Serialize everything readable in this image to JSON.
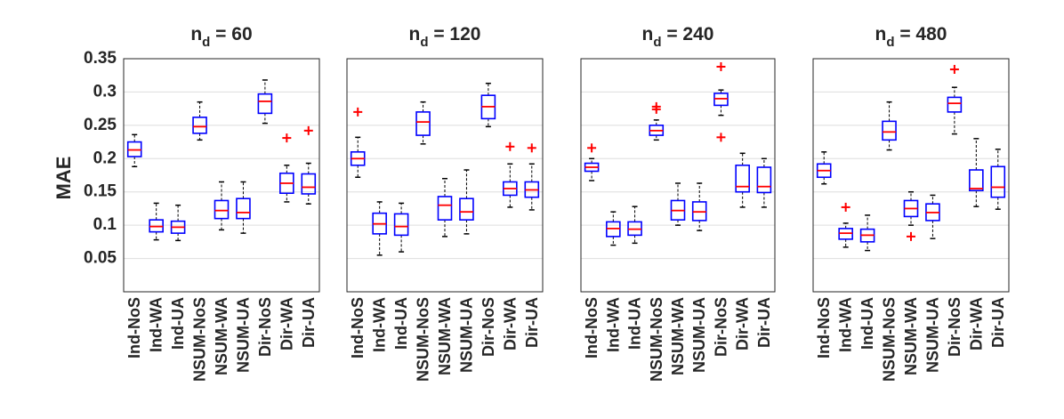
{
  "chart_data": [
    {
      "type": "box",
      "title": "n",
      "title_sub": "d",
      "title_value": " = 60",
      "ylabel": "MAE",
      "ylim": [
        0,
        0.35
      ],
      "yticks": [
        "0.05",
        "0.1",
        "0.15",
        "0.2",
        "0.25",
        "0.3",
        "0.35"
      ],
      "grid": "horizontal",
      "categories": [
        "Ind-NoS",
        "Ind-WA",
        "Ind-UA",
        "NSUM-NoS",
        "NSUM-WA",
        "NSUM-UA",
        "Dir-NoS",
        "Dir-WA",
        "Dir-UA"
      ],
      "boxes": [
        {
          "min": 0.188,
          "q1": 0.203,
          "median": 0.213,
          "q3": 0.225,
          "max": 0.236,
          "outliers": []
        },
        {
          "min": 0.078,
          "q1": 0.09,
          "median": 0.098,
          "q3": 0.108,
          "max": 0.133,
          "outliers": []
        },
        {
          "min": 0.077,
          "q1": 0.088,
          "median": 0.097,
          "q3": 0.106,
          "max": 0.13,
          "outliers": []
        },
        {
          "min": 0.228,
          "q1": 0.238,
          "median": 0.248,
          "q3": 0.262,
          "max": 0.285,
          "outliers": []
        },
        {
          "min": 0.093,
          "q1": 0.11,
          "median": 0.122,
          "q3": 0.137,
          "max": 0.165,
          "outliers": []
        },
        {
          "min": 0.088,
          "q1": 0.11,
          "median": 0.119,
          "q3": 0.14,
          "max": 0.165,
          "outliers": []
        },
        {
          "min": 0.253,
          "q1": 0.268,
          "median": 0.286,
          "q3": 0.297,
          "max": 0.318,
          "outliers": []
        },
        {
          "min": 0.135,
          "q1": 0.148,
          "median": 0.163,
          "q3": 0.178,
          "max": 0.19,
          "outliers": [
            0.231
          ]
        },
        {
          "min": 0.132,
          "q1": 0.147,
          "median": 0.157,
          "q3": 0.177,
          "max": 0.193,
          "outliers": [
            0.242
          ]
        }
      ]
    },
    {
      "type": "box",
      "title": "n",
      "title_sub": "d",
      "title_value": " = 120",
      "ylim": [
        0,
        0.35
      ],
      "grid": "horizontal",
      "categories": [
        "Ind-NoS",
        "Ind-WA",
        "Ind-UA",
        "NSUM-NoS",
        "NSUM-WA",
        "NSUM-UA",
        "Dir-NoS",
        "Dir-WA",
        "Dir-UA"
      ],
      "boxes": [
        {
          "min": 0.172,
          "q1": 0.19,
          "median": 0.2,
          "q3": 0.21,
          "max": 0.232,
          "outliers": [
            0.27
          ]
        },
        {
          "min": 0.055,
          "q1": 0.087,
          "median": 0.102,
          "q3": 0.118,
          "max": 0.135,
          "outliers": []
        },
        {
          "min": 0.06,
          "q1": 0.085,
          "median": 0.098,
          "q3": 0.117,
          "max": 0.133,
          "outliers": []
        },
        {
          "min": 0.222,
          "q1": 0.235,
          "median": 0.255,
          "q3": 0.27,
          "max": 0.285,
          "outliers": []
        },
        {
          "min": 0.083,
          "q1": 0.108,
          "median": 0.13,
          "q3": 0.143,
          "max": 0.17,
          "outliers": []
        },
        {
          "min": 0.087,
          "q1": 0.108,
          "median": 0.12,
          "q3": 0.14,
          "max": 0.183,
          "outliers": []
        },
        {
          "min": 0.248,
          "q1": 0.26,
          "median": 0.278,
          "q3": 0.295,
          "max": 0.313,
          "outliers": []
        },
        {
          "min": 0.127,
          "q1": 0.145,
          "median": 0.155,
          "q3": 0.165,
          "max": 0.192,
          "outliers": [
            0.218
          ]
        },
        {
          "min": 0.123,
          "q1": 0.142,
          "median": 0.153,
          "q3": 0.165,
          "max": 0.192,
          "outliers": [
            0.216
          ]
        }
      ]
    },
    {
      "type": "box",
      "title": "n",
      "title_sub": "d",
      "title_value": " = 240",
      "ylim": [
        0,
        0.35
      ],
      "grid": "horizontal",
      "categories": [
        "Ind-NoS",
        "Ind-WA",
        "Ind-UA",
        "NSUM-NoS",
        "NSUM-WA",
        "NSUM-UA",
        "Dir-NoS",
        "Dir-WA",
        "Dir-UA"
      ],
      "boxes": [
        {
          "min": 0.167,
          "q1": 0.181,
          "median": 0.187,
          "q3": 0.193,
          "max": 0.2,
          "outliers": [
            0.216
          ]
        },
        {
          "min": 0.07,
          "q1": 0.083,
          "median": 0.095,
          "q3": 0.105,
          "max": 0.12,
          "outliers": []
        },
        {
          "min": 0.073,
          "q1": 0.085,
          "median": 0.094,
          "q3": 0.105,
          "max": 0.128,
          "outliers": []
        },
        {
          "min": 0.228,
          "q1": 0.235,
          "median": 0.242,
          "q3": 0.25,
          "max": 0.258,
          "outliers": [
            0.274,
            0.278
          ]
        },
        {
          "min": 0.1,
          "q1": 0.108,
          "median": 0.122,
          "q3": 0.137,
          "max": 0.163,
          "outliers": []
        },
        {
          "min": 0.092,
          "q1": 0.107,
          "median": 0.12,
          "q3": 0.135,
          "max": 0.163,
          "outliers": []
        },
        {
          "min": 0.265,
          "q1": 0.28,
          "median": 0.29,
          "q3": 0.298,
          "max": 0.303,
          "outliers": [
            0.338,
            0.232
          ]
        },
        {
          "min": 0.127,
          "q1": 0.15,
          "median": 0.158,
          "q3": 0.19,
          "max": 0.208,
          "outliers": []
        },
        {
          "min": 0.127,
          "q1": 0.149,
          "median": 0.158,
          "q3": 0.187,
          "max": 0.2,
          "outliers": []
        }
      ]
    },
    {
      "type": "box",
      "title": "n",
      "title_sub": "d",
      "title_value": " = 480",
      "ylim": [
        0,
        0.35
      ],
      "grid": "horizontal",
      "categories": [
        "Ind-NoS",
        "Ind-WA",
        "Ind-UA",
        "NSUM-NoS",
        "NSUM-WA",
        "NSUM-UA",
        "Dir-NoS",
        "Dir-WA",
        "Dir-UA"
      ],
      "boxes": [
        {
          "min": 0.162,
          "q1": 0.172,
          "median": 0.182,
          "q3": 0.192,
          "max": 0.21,
          "outliers": []
        },
        {
          "min": 0.067,
          "q1": 0.079,
          "median": 0.088,
          "q3": 0.095,
          "max": 0.103,
          "outliers": [
            0.127
          ]
        },
        {
          "min": 0.062,
          "q1": 0.075,
          "median": 0.085,
          "q3": 0.094,
          "max": 0.115,
          "outliers": []
        },
        {
          "min": 0.213,
          "q1": 0.228,
          "median": 0.24,
          "q3": 0.256,
          "max": 0.285,
          "outliers": []
        },
        {
          "min": 0.1,
          "q1": 0.113,
          "median": 0.125,
          "q3": 0.137,
          "max": 0.15,
          "outliers": [
            0.083
          ]
        },
        {
          "min": 0.08,
          "q1": 0.107,
          "median": 0.119,
          "q3": 0.132,
          "max": 0.145,
          "outliers": []
        },
        {
          "min": 0.237,
          "q1": 0.27,
          "median": 0.283,
          "q3": 0.292,
          "max": 0.307,
          "outliers": [
            0.334
          ]
        },
        {
          "min": 0.128,
          "q1": 0.152,
          "median": 0.155,
          "q3": 0.183,
          "max": 0.23,
          "outliers": []
        },
        {
          "min": 0.124,
          "q1": 0.142,
          "median": 0.157,
          "q3": 0.188,
          "max": 0.214,
          "outliers": []
        }
      ]
    }
  ],
  "colors": {
    "box": "#0000ff",
    "median": "#ff0000",
    "outlier": "#ff0000",
    "whisker": "#000000",
    "axis": "#262626",
    "grid": "#dedede",
    "text": "#262626"
  }
}
